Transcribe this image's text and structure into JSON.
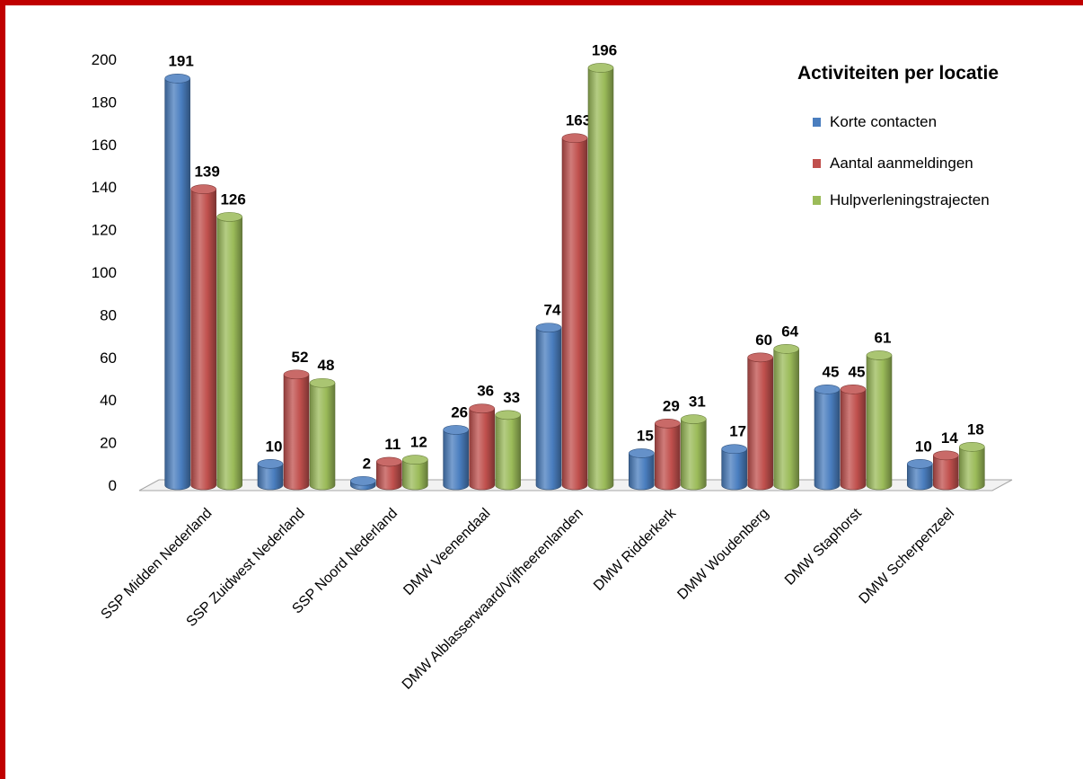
{
  "chart_data": {
    "type": "bar",
    "title": "Activiteiten per locatie",
    "categories": [
      "SSP Midden Nederland",
      "SSP Zuidwest Nederland",
      "SSP Noord Nederland",
      "DMW Veenendaal",
      "DMW Alblasserwaard/Vijfheerenlanden",
      "DMW Ridderkerk",
      "DMW Woudenberg",
      "DMW Staphorst",
      "DMW Scherpenzeel"
    ],
    "series": [
      {
        "name": "Korte contacten",
        "color": "#4a7ebf",
        "values": [
          191,
          10,
          2,
          26,
          74,
          15,
          17,
          45,
          10
        ]
      },
      {
        "name": "Aantal aanmeldingen",
        "color": "#c0504d",
        "values": [
          139,
          52,
          11,
          36,
          163,
          29,
          60,
          45,
          14
        ]
      },
      {
        "name": "Hulpverleningstrajecten",
        "color": "#9bbb59",
        "values": [
          126,
          48,
          12,
          33,
          196,
          31,
          64,
          61,
          18
        ]
      }
    ],
    "ylim": [
      0,
      200
    ],
    "yticks": [
      0,
      20,
      40,
      60,
      80,
      100,
      120,
      140,
      160,
      180,
      200
    ],
    "legend_position": "top-right",
    "grid": false,
    "bar_style": "3d-cylinder"
  },
  "frame_color": "#c00000"
}
